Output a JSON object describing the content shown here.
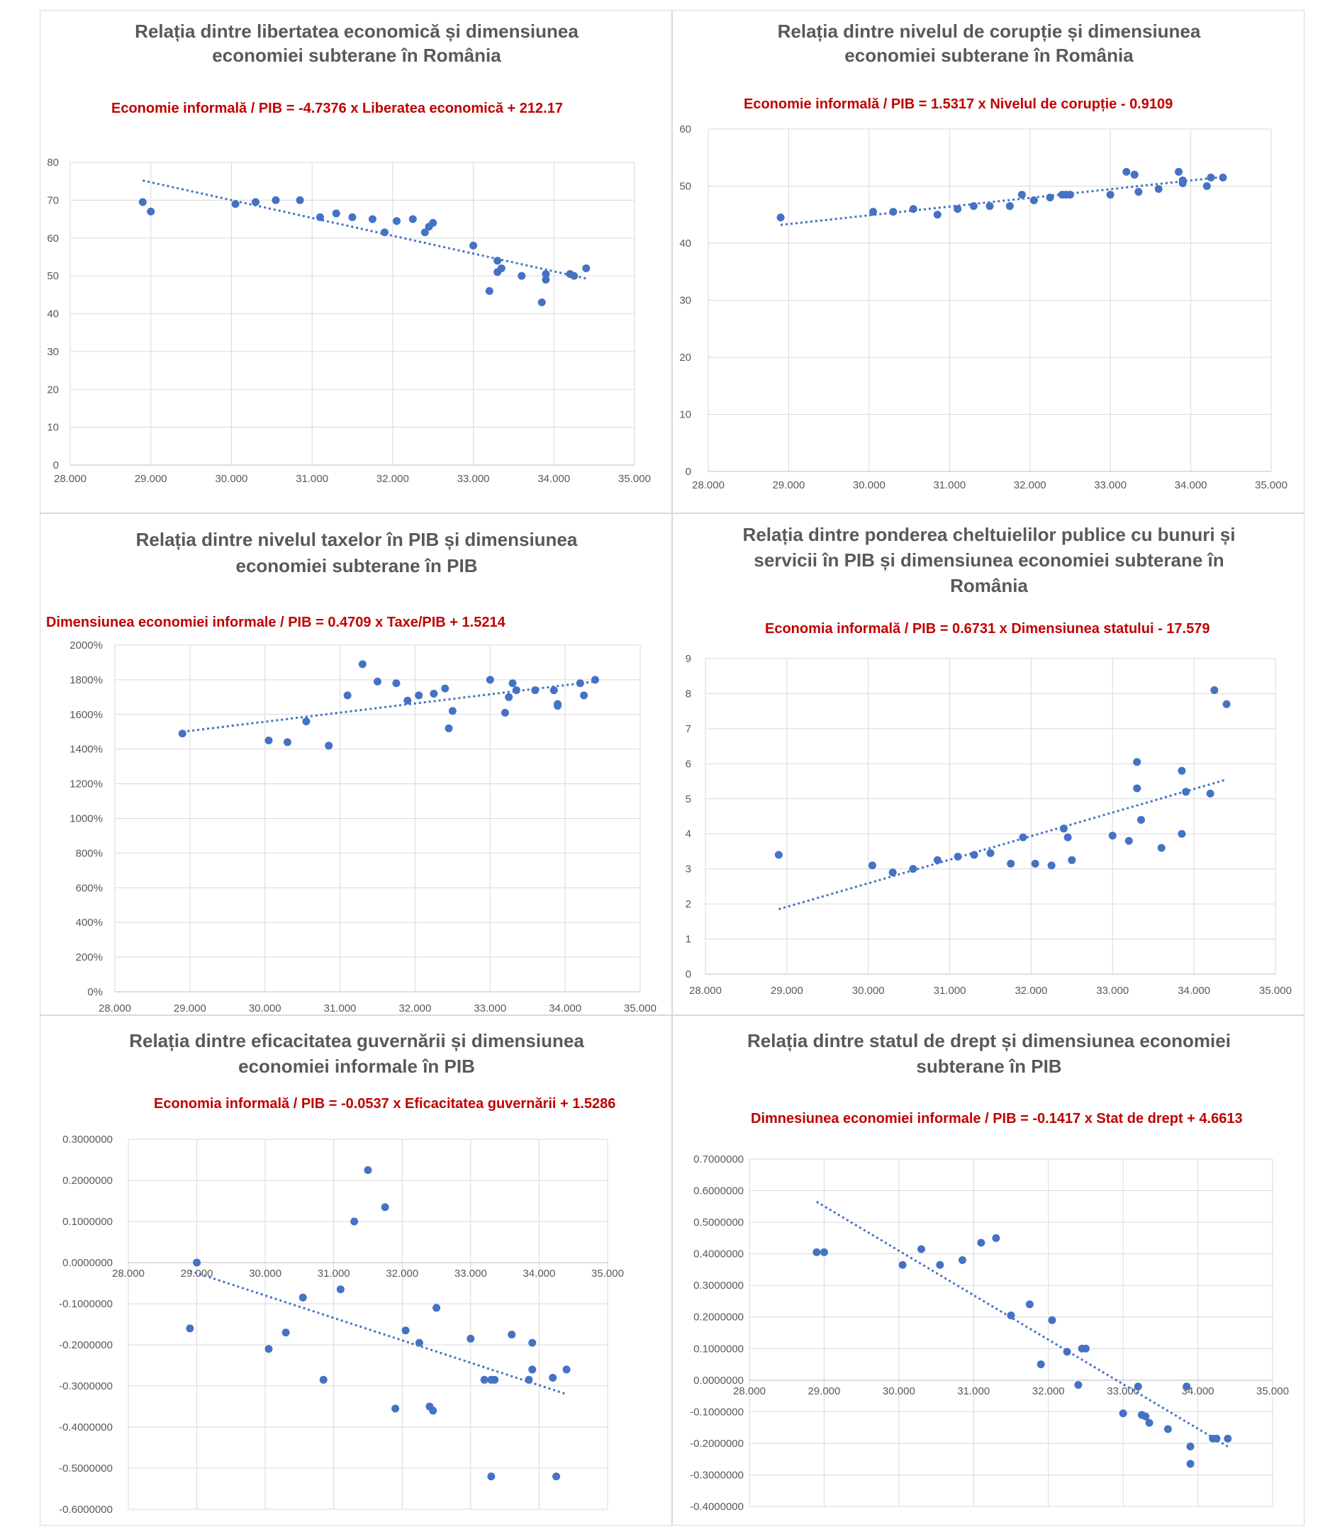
{
  "chart_data": [
    {
      "type": "scatter",
      "title_lines": [
        "Relația dintre libertatea economică și dimensiunea",
        "economiei subterane în România"
      ],
      "equation": "Economie informală / PIB = -4.7376 x Liberatea economică + 212.17",
      "xlim": [
        28,
        35
      ],
      "ylim": [
        0,
        80
      ],
      "x_ticks": [
        "28.000",
        "29.000",
        "30.000",
        "31.000",
        "32.000",
        "33.000",
        "34.000",
        "35.000"
      ],
      "y_ticks": [
        "0",
        "10",
        "20",
        "30",
        "40",
        "50",
        "60",
        "70",
        "80"
      ],
      "trend": {
        "x": [
          28.9,
          34.4
        ],
        "y": [
          75.2,
          49.3
        ]
      },
      "points": {
        "x": [
          28.9,
          29.0,
          30.05,
          30.3,
          30.55,
          30.85,
          31.1,
          31.3,
          31.5,
          31.75,
          31.9,
          32.05,
          32.25,
          32.4,
          32.45,
          32.5,
          33.0,
          33.2,
          33.3,
          33.3,
          33.35,
          33.6,
          33.85,
          33.9,
          33.9,
          34.2,
          34.25,
          34.4
        ],
        "y": [
          69.5,
          67.0,
          69.0,
          69.5,
          70.0,
          70.0,
          65.5,
          66.5,
          65.5,
          65.0,
          61.5,
          64.5,
          65.0,
          61.5,
          63.0,
          64.0,
          58.0,
          46.0,
          54.0,
          51.0,
          52.0,
          50.0,
          43.0,
          49.0,
          50.5,
          50.5,
          50.0,
          52.0
        ]
      }
    },
    {
      "type": "scatter",
      "title_lines": [
        "Relația dintre nivelul de corupție și dimensiunea",
        "economiei subterane în România"
      ],
      "equation": "Economie informală / PIB = 1.5317 x Nivelul de corupție - 0.9109",
      "xlim": [
        28,
        35
      ],
      "ylim": [
        0,
        60
      ],
      "x_ticks": [
        "28.000",
        "29.000",
        "30.000",
        "31.000",
        "32.000",
        "33.000",
        "34.000",
        "35.000"
      ],
      "y_ticks": [
        "0",
        "10",
        "20",
        "30",
        "40",
        "50",
        "60"
      ],
      "trend": {
        "x": [
          28.9,
          34.4
        ],
        "y": [
          43.2,
          51.6
        ]
      },
      "points": {
        "x": [
          28.9,
          30.05,
          30.3,
          30.55,
          30.85,
          31.1,
          31.3,
          31.5,
          31.75,
          31.9,
          32.05,
          32.25,
          32.4,
          32.45,
          32.5,
          33.0,
          33.2,
          33.3,
          33.3,
          33.35,
          33.6,
          33.85,
          33.9,
          33.9,
          34.2,
          34.25,
          34.4
        ],
        "y": [
          44.5,
          45.5,
          45.5,
          46.0,
          45.0,
          46.0,
          46.5,
          46.5,
          46.5,
          48.5,
          47.5,
          48.0,
          48.5,
          48.5,
          48.5,
          48.5,
          52.5,
          52.0,
          52.0,
          49.0,
          49.5,
          52.5,
          51.0,
          50.5,
          50.0,
          51.5,
          51.5
        ]
      }
    },
    {
      "type": "scatter",
      "title_lines": [
        "Relația dintre nivelul taxelor în PIB și dimensiunea",
        "economiei subterane în PIB"
      ],
      "equation": "Dimensiunea economiei informale / PIB = 0.4709 x  Taxe/PIB + 1.5214",
      "xlim": [
        28,
        35
      ],
      "ylim": [
        0,
        2000
      ],
      "x_ticks": [
        "28.000",
        "29.000",
        "30.000",
        "31.000",
        "32.000",
        "33.000",
        "34.000",
        "35.000"
      ],
      "y_ticks": [
        "0%",
        "200%",
        "400%",
        "600%",
        "800%",
        "1000%",
        "1200%",
        "1400%",
        "1600%",
        "1800%",
        "2000%"
      ],
      "trend": {
        "x": [
          28.9,
          34.4
        ],
        "y": [
          1500,
          1790
        ]
      },
      "points": {
        "x": [
          28.9,
          30.05,
          30.3,
          30.55,
          30.85,
          31.1,
          31.3,
          31.5,
          31.75,
          31.9,
          32.05,
          32.25,
          32.4,
          32.45,
          32.5,
          33.0,
          33.2,
          33.25,
          33.3,
          33.35,
          33.6,
          33.85,
          33.9,
          33.9,
          34.2,
          34.25,
          34.4
        ],
        "y": [
          1490,
          1450,
          1440,
          1560,
          1420,
          1710,
          1890,
          1790,
          1780,
          1680,
          1710,
          1720,
          1750,
          1520,
          1620,
          1800,
          1610,
          1700,
          1780,
          1740,
          1740,
          1740,
          1660,
          1650,
          1780,
          1710,
          1800
        ]
      }
    },
    {
      "type": "scatter",
      "title_lines": [
        "Relația dintre ponderea cheltuielilor publice cu bunuri și",
        "servicii în PIB și dimensiunea economiei subterane în",
        "România"
      ],
      "equation": "Economia informală / PIB = 0.6731 x  Dimensiunea statului - 17.579",
      "xlim": [
        28,
        35
      ],
      "ylim": [
        0,
        9
      ],
      "x_ticks": [
        "28.000",
        "29.000",
        "30.000",
        "31.000",
        "32.000",
        "33.000",
        "34.000",
        "35.000"
      ],
      "y_ticks": [
        "0",
        "1",
        "2",
        "3",
        "4",
        "5",
        "6",
        "7",
        "8",
        "9"
      ],
      "trend": {
        "x": [
          28.9,
          34.4
        ],
        "y": [
          1.85,
          5.55
        ]
      },
      "points": {
        "x": [
          28.9,
          30.05,
          30.3,
          30.55,
          30.85,
          31.1,
          31.3,
          31.5,
          31.75,
          31.9,
          32.05,
          32.25,
          32.4,
          32.45,
          32.5,
          33.0,
          33.2,
          33.3,
          33.3,
          33.35,
          33.6,
          33.85,
          33.85,
          33.9,
          34.2,
          34.25,
          34.4
        ],
        "y": [
          3.4,
          3.1,
          2.9,
          3.0,
          3.25,
          3.35,
          3.4,
          3.45,
          3.15,
          3.9,
          3.15,
          3.1,
          4.15,
          3.9,
          3.25,
          3.95,
          3.8,
          6.05,
          5.3,
          4.4,
          3.6,
          4.0,
          5.8,
          5.2,
          5.15,
          8.1,
          7.7
        ]
      }
    },
    {
      "type": "scatter",
      "title_lines": [
        "Relația dintre eficacitatea guvernării și dimensiunea",
        "economiei informale în PIB"
      ],
      "equation": "Economia informală / PIB = -0.0537 x Eficacitatea guvernării + 1.5286",
      "xlim": [
        28,
        35
      ],
      "ylim": [
        -0.6,
        0.3
      ],
      "x_ticks": [
        "28.000",
        "29.000",
        "30.000",
        "31.000",
        "32.000",
        "33.000",
        "34.000",
        "35.000"
      ],
      "y_ticks": [
        "-0.6000000",
        "-0.5000000",
        "-0.4000000",
        "-0.3000000",
        "-0.2000000",
        "-0.1000000",
        "0.0000000",
        "0.1000000",
        "0.2000000",
        "0.3000000"
      ],
      "trend": {
        "x": [
          28.9,
          34.4
        ],
        "y": [
          -0.02,
          -0.32
        ]
      },
      "points": {
        "x": [
          28.9,
          29.0,
          30.05,
          30.3,
          30.55,
          30.85,
          31.1,
          31.3,
          31.5,
          31.75,
          31.9,
          32.05,
          32.25,
          32.4,
          32.45,
          32.5,
          33.0,
          33.2,
          33.3,
          33.35,
          33.3,
          33.6,
          33.85,
          33.9,
          33.9,
          34.2,
          34.25,
          34.4
        ],
        "y": [
          -0.16,
          0.0,
          -0.21,
          -0.17,
          -0.085,
          -0.285,
          -0.065,
          0.1,
          0.225,
          0.135,
          -0.355,
          -0.165,
          -0.195,
          -0.35,
          -0.36,
          -0.11,
          -0.185,
          -0.285,
          -0.285,
          -0.285,
          -0.52,
          -0.175,
          -0.285,
          -0.195,
          -0.26,
          -0.28,
          -0.52,
          -0.26
        ]
      }
    },
    {
      "type": "scatter",
      "title_lines": [
        "Relația dintre statul de drept și dimensiunea economiei",
        "subterane în PIB"
      ],
      "equation": "Dimnesiunea economiei informale / PIB = -0.1417 x Stat de drept + 4.6613",
      "xlim": [
        28,
        35
      ],
      "ylim": [
        -0.4,
        0.7
      ],
      "x_ticks": [
        "28.000",
        "29.000",
        "30.000",
        "31.000",
        "32.000",
        "33.000",
        "34.000",
        "35.000"
      ],
      "y_ticks": [
        "-0.4000000",
        "-0.3000000",
        "-0.2000000",
        "-0.1000000",
        "0.0000000",
        "0.1000000",
        "0.2000000",
        "0.3000000",
        "0.4000000",
        "0.5000000",
        "0.6000000",
        "0.7000000"
      ],
      "trend": {
        "x": [
          28.9,
          34.4
        ],
        "y": [
          0.565,
          -0.21
        ]
      },
      "points": {
        "x": [
          28.9,
          29.0,
          30.05,
          30.3,
          30.55,
          30.85,
          31.1,
          31.3,
          31.5,
          31.75,
          31.9,
          32.05,
          32.25,
          32.4,
          32.45,
          32.5,
          33.0,
          33.2,
          33.25,
          33.3,
          33.35,
          33.6,
          33.85,
          33.9,
          33.9,
          34.2,
          34.25,
          34.4
        ],
        "y": [
          0.405,
          0.405,
          0.365,
          0.415,
          0.365,
          0.38,
          0.435,
          0.45,
          0.205,
          0.24,
          0.05,
          0.19,
          0.09,
          -0.015,
          0.1,
          0.1,
          -0.105,
          -0.02,
          -0.11,
          -0.115,
          -0.135,
          -0.155,
          -0.02,
          -0.21,
          -0.265,
          -0.185,
          -0.185,
          -0.185
        ]
      }
    }
  ]
}
